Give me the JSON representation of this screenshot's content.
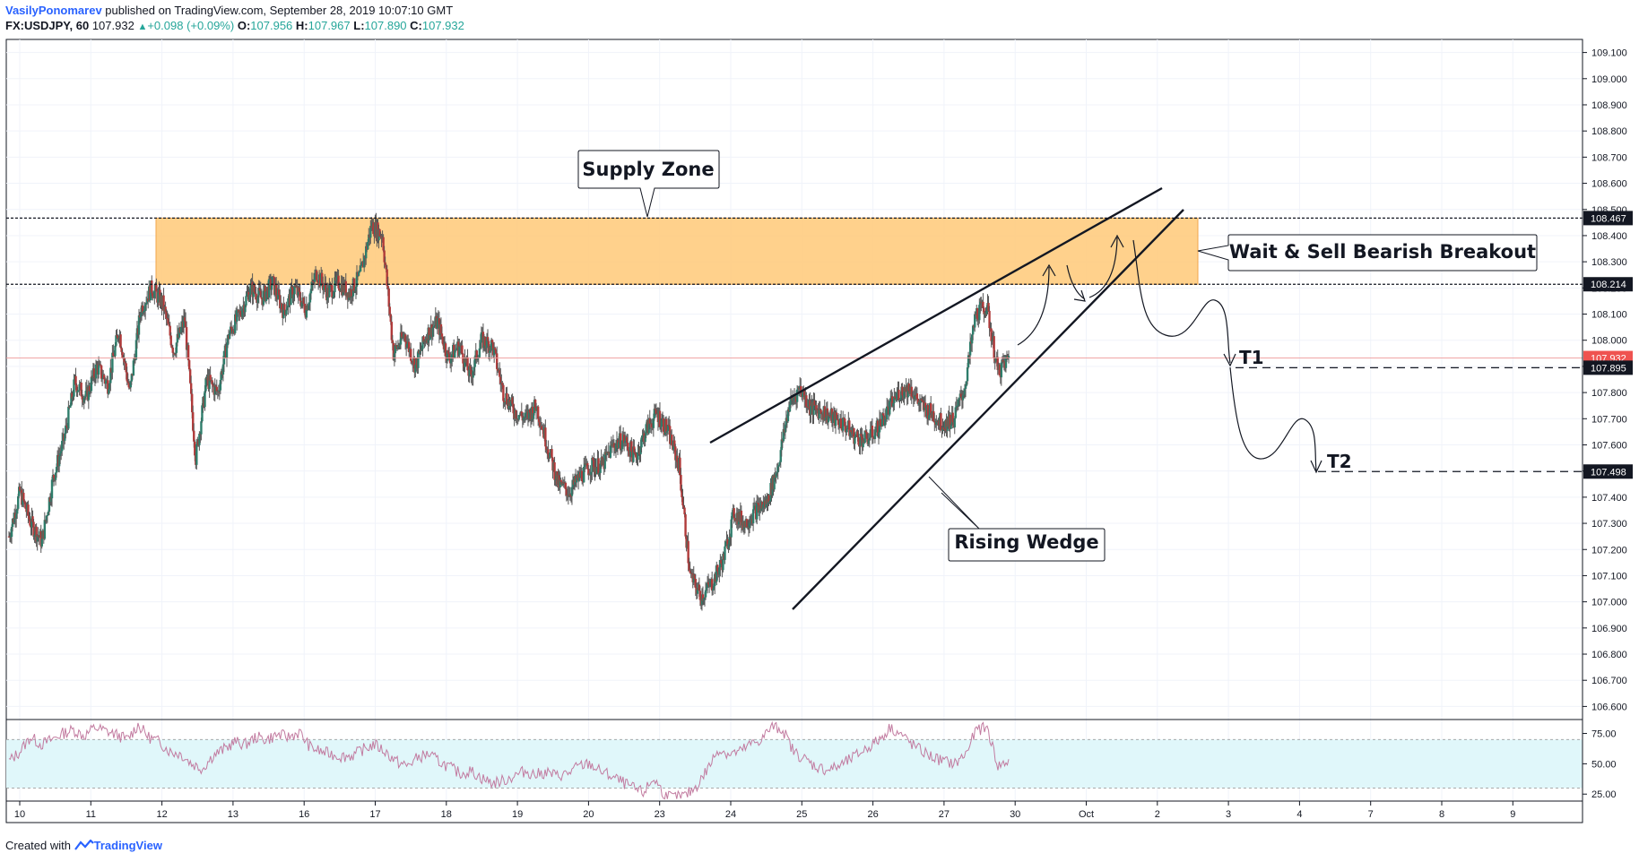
{
  "header": {
    "author": "VasilyPonomarev",
    "published": "published on TradingView.com, September 28, 2019 10:07:10 GMT",
    "symbol": "FX:USDJPY, 60",
    "last": "107.932",
    "change": "+0.098 (+0.09%)",
    "o_label": "O:",
    "o": "107.956",
    "h_label": "H:",
    "h": "107.967",
    "l_label": "L:",
    "l": "107.890",
    "c_label": "C:",
    "c": "107.932"
  },
  "footer": {
    "created": "Created with",
    "brand": "TradingView"
  },
  "colors": {
    "up": "#26a69a",
    "down": "#ef5350",
    "zone": "#ffcc80",
    "rsi_band": "#e0f7fa",
    "rsi_line": "#c27ba0",
    "price_tag": "#ef5350",
    "level_tag": "#131722"
  },
  "chart_data": {
    "type": "candlestick",
    "ylim": [
      106.55,
      109.15
    ],
    "y_ticks": [
      "109.100",
      "109.000",
      "108.900",
      "108.800",
      "108.700",
      "108.600",
      "108.500",
      "108.400",
      "108.300",
      "108.200",
      "108.100",
      "108.000",
      "107.900",
      "107.800",
      "107.700",
      "107.600",
      "107.500",
      "107.400",
      "107.300",
      "107.200",
      "107.100",
      "107.000",
      "106.900",
      "106.800",
      "106.700",
      "106.600"
    ],
    "x_ticks": [
      "10",
      "11",
      "12",
      "13",
      "16",
      "17",
      "18",
      "19",
      "20",
      "23",
      "24",
      "25",
      "26",
      "27",
      "30",
      "Oct",
      "2",
      "3",
      "4",
      "7",
      "8",
      "9"
    ],
    "price_tags": [
      {
        "value": 108.467,
        "label": "108.467",
        "kind": "level"
      },
      {
        "value": 108.214,
        "label": "108.214",
        "kind": "level"
      },
      {
        "value": 107.932,
        "label": "107.932",
        "kind": "price"
      },
      {
        "value": 107.895,
        "label": "107.895",
        "kind": "level"
      },
      {
        "value": 107.498,
        "label": "107.498",
        "kind": "level"
      }
    ],
    "supply_zone": {
      "top": 108.467,
      "bottom": 108.214,
      "label": "Supply Zone"
    },
    "annotations": {
      "breakout": "Wait & Sell Bearish Breakout",
      "wedge": "Rising Wedge",
      "t1": "T1",
      "t2": "T2"
    },
    "trend_lines": [
      {
        "name": "wedge-upper",
        "from": [
          "Sep 23 18:00",
          107.6
        ],
        "to": [
          "Oct 2 00:00",
          108.58
        ]
      },
      {
        "name": "wedge-lower",
        "from": [
          "Sep 24 20:00",
          106.97
        ],
        "to": [
          "Oct 2 12:00",
          108.5
        ]
      }
    ],
    "targets": [
      {
        "name": "T1",
        "value": 107.895
      },
      {
        "name": "T2",
        "value": 107.498
      }
    ],
    "close_path": [
      107.25,
      107.42,
      107.3,
      107.23,
      107.47,
      107.62,
      107.84,
      107.78,
      107.9,
      107.83,
      108.04,
      107.8,
      108.12,
      108.2,
      108.14,
      107.96,
      108.08,
      107.55,
      107.85,
      107.8,
      108.02,
      108.1,
      108.2,
      108.16,
      108.22,
      108.11,
      108.2,
      108.12,
      108.26,
      108.18,
      108.22,
      108.18,
      108.25,
      108.44,
      108.4,
      107.95,
      108.02,
      107.9,
      108.02,
      108.07,
      107.93,
      107.98,
      107.86,
      108.0,
      107.98,
      107.8,
      107.73,
      107.7,
      107.75,
      107.6,
      107.45,
      107.42,
      107.48,
      107.52,
      107.52,
      107.6,
      107.62,
      107.55,
      107.66,
      107.72,
      107.65,
      107.52,
      107.1,
      107.02,
      107.07,
      107.16,
      107.34,
      107.3,
      107.35,
      107.38,
      107.52,
      107.75,
      107.82,
      107.74,
      107.73,
      107.7,
      107.68,
      107.63,
      107.62,
      107.66,
      107.73,
      107.8,
      107.82,
      107.75,
      107.72,
      107.68,
      107.7,
      107.82,
      108.1,
      108.13,
      107.88,
      107.93
    ],
    "rsi": {
      "levels": [
        75,
        50,
        25
      ],
      "band": [
        30,
        70
      ],
      "ylim": [
        20,
        85
      ],
      "values": [
        52,
        60,
        72,
        66,
        70,
        75,
        78,
        73,
        80,
        77,
        74,
        70,
        82,
        72,
        68,
        60,
        58,
        50,
        46,
        57,
        62,
        68,
        66,
        72,
        70,
        74,
        72,
        76,
        64,
        60,
        58,
        56,
        57,
        62,
        66,
        60,
        52,
        48,
        55,
        58,
        52,
        47,
        42,
        44,
        38,
        34,
        36,
        40,
        44,
        41,
        43,
        40,
        42,
        48,
        50,
        44,
        40,
        35,
        30,
        26,
        38,
        24,
        22,
        24,
        32,
        46,
        62,
        58,
        60,
        66,
        70,
        81,
        78,
        60,
        54,
        48,
        45,
        47,
        52,
        58,
        64,
        70,
        80,
        74,
        66,
        60,
        55,
        52,
        50,
        58,
        78,
        80,
        48,
        52
      ]
    }
  }
}
